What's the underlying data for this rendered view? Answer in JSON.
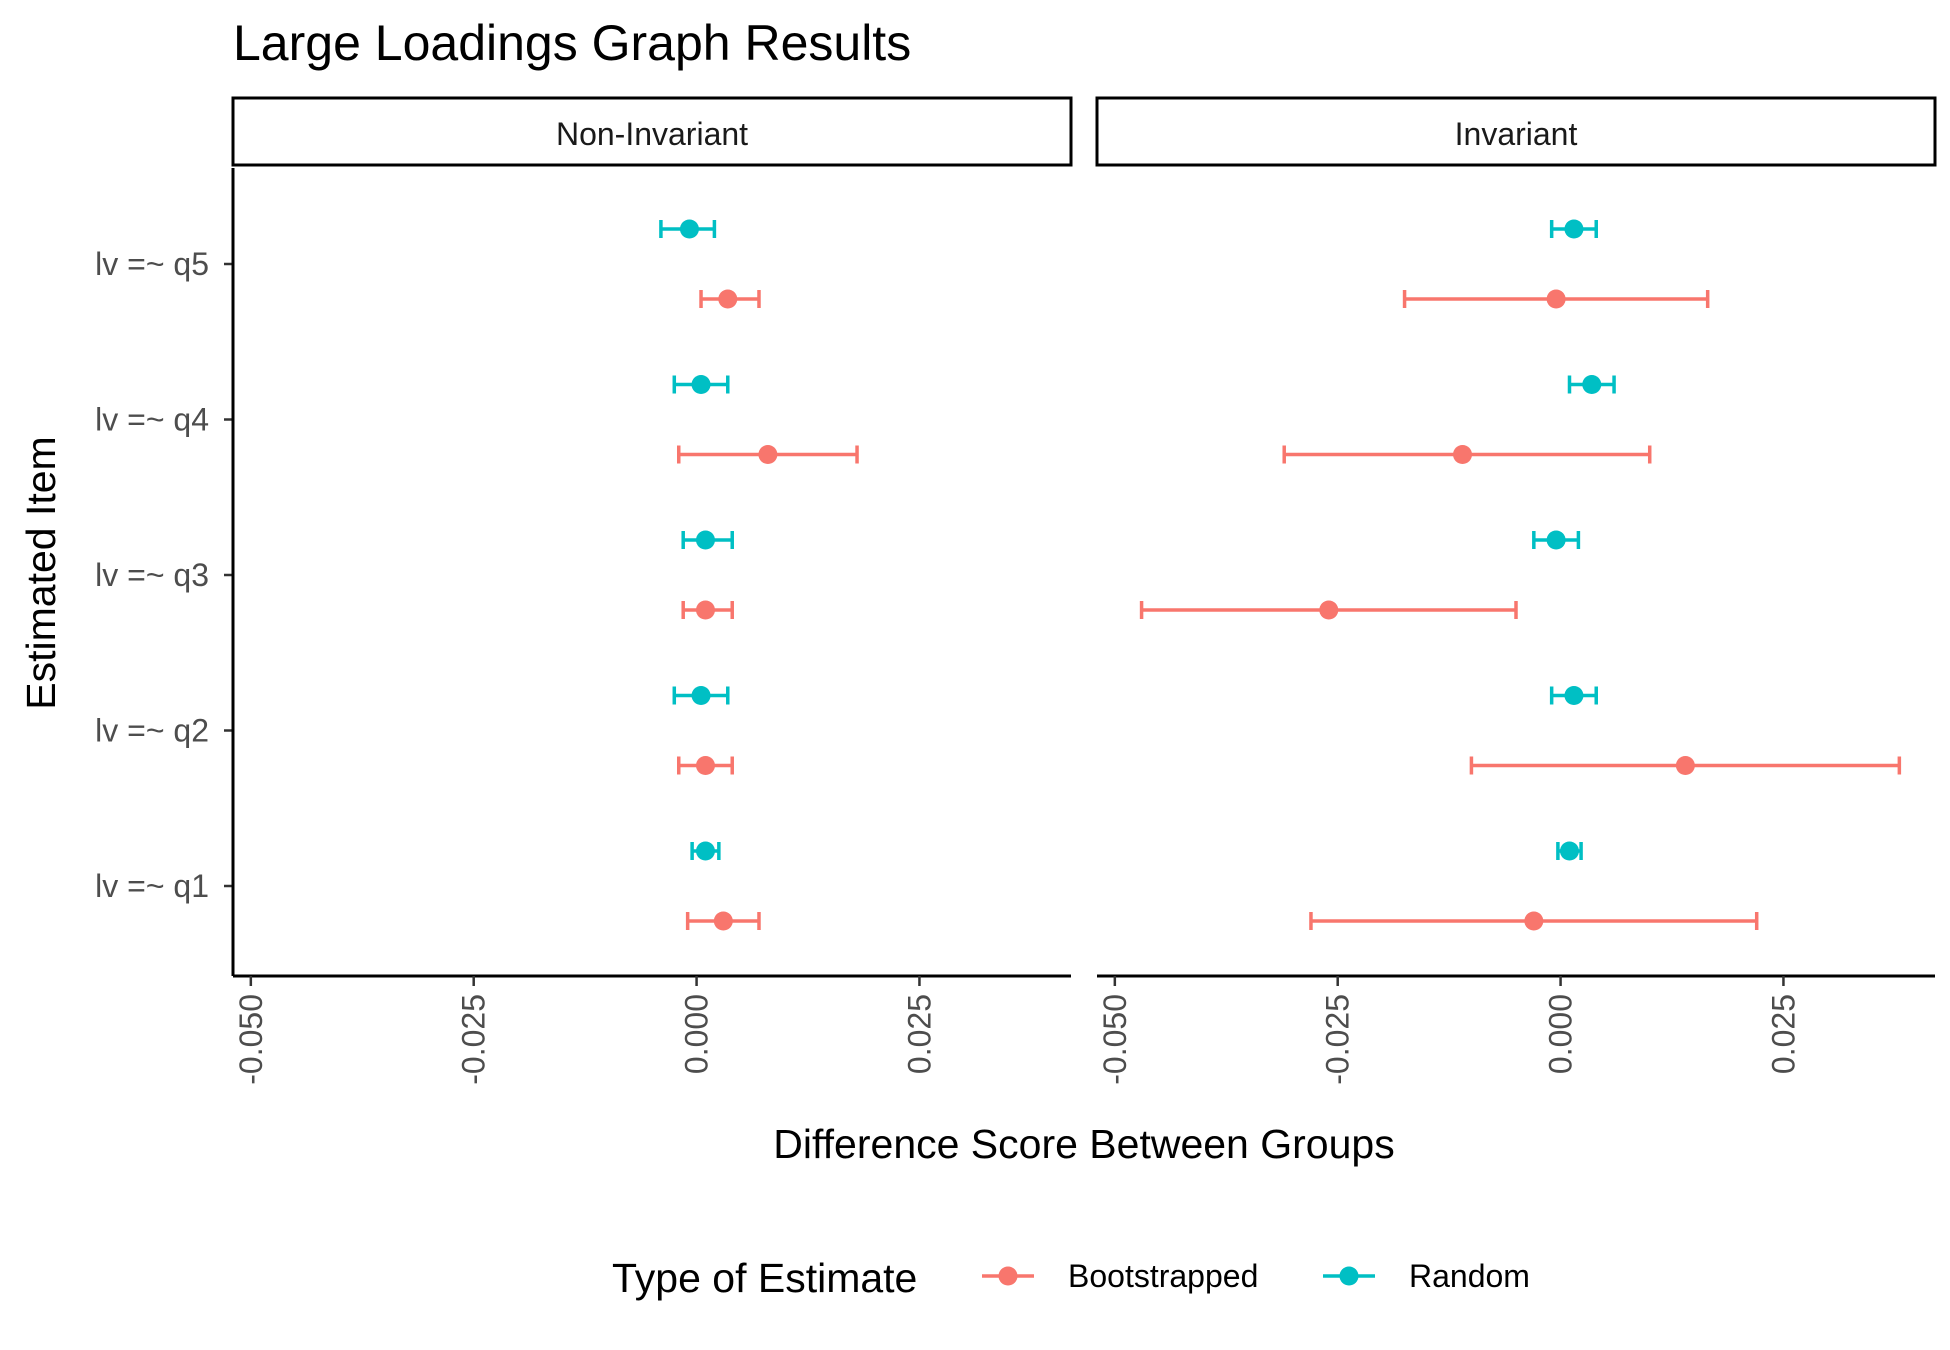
{
  "chart_data": {
    "type": "errorbar",
    "title": "Large Loadings Graph Results",
    "xlabel": "Difference Score Between Groups",
    "ylabel": "Estimated Item",
    "xlim": [
      -0.052,
      0.042
    ],
    "x_ticks": [
      "-0.050",
      "-0.025",
      "0.000",
      "0.025"
    ],
    "x_tick_values": [
      -0.05,
      -0.025,
      0.0,
      0.025
    ],
    "categories": [
      "lv =~ q1",
      "lv =~ q2",
      "lv =~ q3",
      "lv =~ q4",
      "lv =~ q5"
    ],
    "facets": [
      "Non-Invariant",
      "Invariant"
    ],
    "grid": false,
    "legend": {
      "title": "Type of Estimate",
      "position": "bottom",
      "entries": [
        "Bootstrapped",
        "Random"
      ]
    },
    "colors": {
      "Bootstrapped": "#F8766D",
      "Random": "#00BFC4"
    },
    "series": [
      {
        "name": "Bootstrapped",
        "panels": {
          "Non-Invariant": [
            {
              "item": "lv =~ q1",
              "est": 0.003,
              "lo": -0.001,
              "hi": 0.007
            },
            {
              "item": "lv =~ q2",
              "est": 0.001,
              "lo": -0.002,
              "hi": 0.004
            },
            {
              "item": "lv =~ q3",
              "est": 0.001,
              "lo": -0.0015,
              "hi": 0.004
            },
            {
              "item": "lv =~ q4",
              "est": 0.008,
              "lo": -0.002,
              "hi": 0.018
            },
            {
              "item": "lv =~ q5",
              "est": 0.0035,
              "lo": 0.0005,
              "hi": 0.007
            }
          ],
          "Invariant": [
            {
              "item": "lv =~ q1",
              "est": -0.003,
              "lo": -0.028,
              "hi": 0.022
            },
            {
              "item": "lv =~ q2",
              "est": 0.014,
              "lo": -0.01,
              "hi": 0.038
            },
            {
              "item": "lv =~ q3",
              "est": -0.026,
              "lo": -0.047,
              "hi": -0.005
            },
            {
              "item": "lv =~ q4",
              "est": -0.011,
              "lo": -0.031,
              "hi": 0.01
            },
            {
              "item": "lv =~ q5",
              "est": -0.0005,
              "lo": -0.0175,
              "hi": 0.0165
            }
          ]
        }
      },
      {
        "name": "Random",
        "panels": {
          "Non-Invariant": [
            {
              "item": "lv =~ q1",
              "est": 0.001,
              "lo": -0.0005,
              "hi": 0.0025
            },
            {
              "item": "lv =~ q2",
              "est": 0.0005,
              "lo": -0.0025,
              "hi": 0.0035
            },
            {
              "item": "lv =~ q3",
              "est": 0.001,
              "lo": -0.0015,
              "hi": 0.004
            },
            {
              "item": "lv =~ q4",
              "est": 0.0005,
              "lo": -0.0025,
              "hi": 0.0035
            },
            {
              "item": "lv =~ q5",
              "est": -0.0008,
              "lo": -0.004,
              "hi": 0.002
            }
          ],
          "Invariant": [
            {
              "item": "lv =~ q1",
              "est": 0.001,
              "lo": -0.0003,
              "hi": 0.0023
            },
            {
              "item": "lv =~ q2",
              "est": 0.0015,
              "lo": -0.001,
              "hi": 0.004
            },
            {
              "item": "lv =~ q3",
              "est": -0.0005,
              "lo": -0.003,
              "hi": 0.002
            },
            {
              "item": "lv =~ q4",
              "est": 0.0035,
              "lo": 0.001,
              "hi": 0.006
            },
            {
              "item": "lv =~ q5",
              "est": 0.0015,
              "lo": -0.001,
              "hi": 0.004
            }
          ]
        }
      }
    ]
  }
}
